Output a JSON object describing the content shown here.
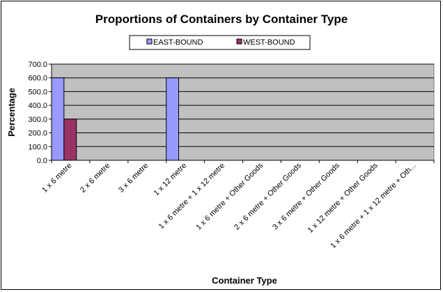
{
  "chart_data": {
    "type": "bar",
    "title": "Proportions of Containers by Container Type",
    "xlabel": "Container Type",
    "ylabel": "Percentage",
    "ylim": [
      0,
      700
    ],
    "yticks": [
      "0.0",
      "100.0",
      "200.0",
      "300.0",
      "400.0",
      "500.0",
      "600.0",
      "700.0"
    ],
    "grid": true,
    "legend_position": "top",
    "plot_background": "#c0c0c0",
    "categories": [
      "1 x 6 metre",
      "2 x 6 metre",
      "3 x 6 metre",
      "1 x 12 metre",
      "1 x 6 metre + 1 x 12 metre",
      "1 x 6 metre + Other Goods",
      "2 x 6 metre + Other Goods",
      "3 x 6 metre + Other Goods",
      "1 x 12 metre + Other Goods",
      "1 x 6 metre + 1 x 12 metre + Oth..."
    ],
    "series": [
      {
        "name": "EAST-BOUND",
        "color": "#9999ff",
        "values": [
          600,
          0,
          0,
          600,
          0,
          0,
          0,
          0,
          0,
          0
        ]
      },
      {
        "name": "WEST-BOUND",
        "color": "#993366",
        "values": [
          300,
          0,
          0,
          0,
          0,
          0,
          0,
          0,
          0,
          0
        ]
      }
    ]
  }
}
